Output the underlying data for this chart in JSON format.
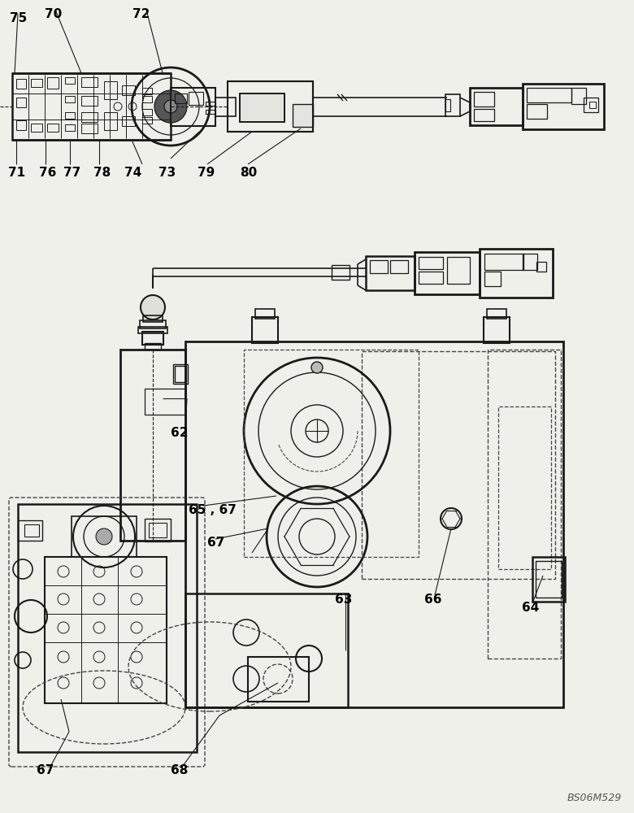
{
  "bg_color": "#f0f0eb",
  "line_color": "#1a1a1a",
  "dashed_color": "#444444",
  "watermark": "BS06M529"
}
